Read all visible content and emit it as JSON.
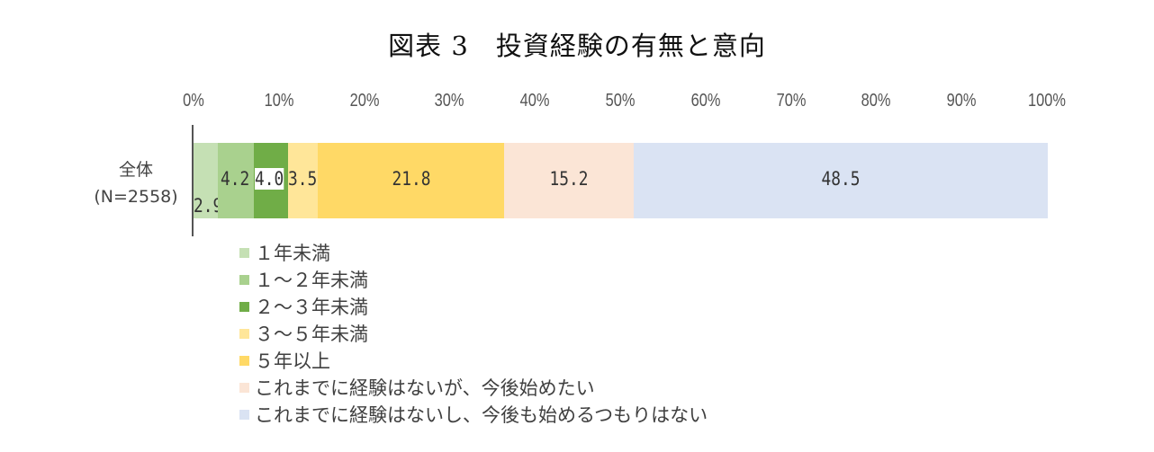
{
  "title": "図表 3　投資経験の有無と意向",
  "category": {
    "line1": "全体",
    "line2": "(N=2558)"
  },
  "chart_data": {
    "type": "bar",
    "orientation": "horizontal",
    "stacked": true,
    "title": "図表 3　投資経験の有無と意向",
    "categories": [
      "全体 (N=2558)"
    ],
    "series": [
      {
        "name": "１年未満",
        "values": [
          2.9
        ],
        "color": "#c5e0b4"
      },
      {
        "name": "１～２年未満",
        "values": [
          4.2
        ],
        "color": "#a9d18e"
      },
      {
        "name": "２～３年未満",
        "values": [
          4.0
        ],
        "color": "#70ad47"
      },
      {
        "name": "３～５年未満",
        "values": [
          3.5
        ],
        "color": "#ffe699"
      },
      {
        "name": "５年以上",
        "values": [
          21.8
        ],
        "color": "#ffd966"
      },
      {
        "name": "これまでに経験はないが、今後始めたい",
        "values": [
          15.2
        ],
        "color": "#fbe5d6"
      },
      {
        "name": "これまでに経験はないし、今後も始めるつもりはない",
        "values": [
          48.5
        ],
        "color": "#dae3f3"
      }
    ],
    "data_labels": [
      "2.9",
      "4.2",
      "4.0",
      "3.5",
      "21.8",
      "15.2",
      "48.5"
    ],
    "xlabel": "",
    "ylabel": "",
    "xlim": [
      0,
      100
    ],
    "xticks": [
      "0%",
      "10%",
      "20%",
      "30%",
      "40%",
      "50%",
      "60%",
      "70%",
      "80%",
      "90%",
      "100%"
    ],
    "grid": false,
    "legend_position": "bottom-left"
  }
}
